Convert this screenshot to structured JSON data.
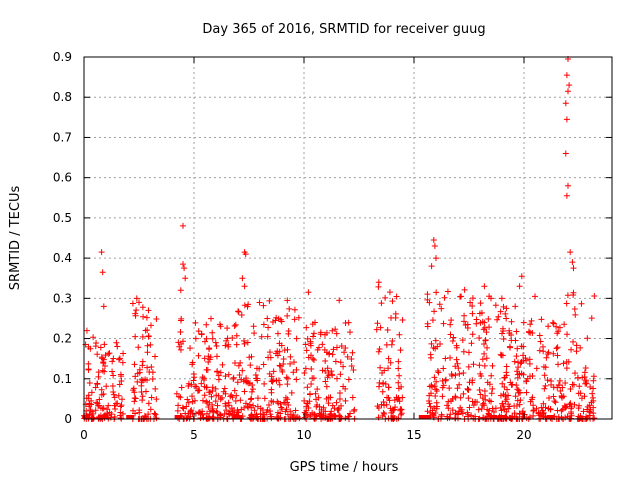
{
  "chart_data": {
    "type": "scatter",
    "title": "Day 365 of 2016, SRMTID for receiver guug",
    "xlabel": "GPS time / hours",
    "ylabel": "SRMTID / TECUs",
    "xlim": [
      0,
      24
    ],
    "ylim": [
      0,
      0.9
    ],
    "xticks": [
      "0",
      "5",
      "10",
      "15",
      "20"
    ],
    "yticks": [
      "0",
      "0.1",
      "0.2",
      "0.3",
      "0.4",
      "0.5",
      "0.6",
      "0.7",
      "0.8",
      "0.9"
    ],
    "grid": true,
    "marker": "+",
    "colors": {
      "points": "#ff0000"
    },
    "clusters": [
      {
        "x_start": 0.0,
        "x_end": 1.8,
        "max": 0.22,
        "spikes": [
          [
            0.8,
            0.415
          ],
          [
            0.85,
            0.365
          ],
          [
            0.9,
            0.28
          ]
        ]
      },
      {
        "x_start": 2.2,
        "x_end": 3.3,
        "max": 0.3,
        "spikes": [
          [
            2.4,
            0.3
          ],
          [
            2.5,
            0.29
          ]
        ]
      },
      {
        "x_start": 4.2,
        "x_end": 7.0,
        "max": 0.25,
        "spikes": [
          [
            4.5,
            0.48
          ],
          [
            4.5,
            0.385
          ],
          [
            4.55,
            0.375
          ],
          [
            4.6,
            0.35
          ],
          [
            4.4,
            0.32
          ],
          [
            8.7,
            0.245
          ]
        ]
      },
      {
        "x_start": 7.0,
        "x_end": 9.8,
        "max": 0.3,
        "spikes": [
          [
            7.3,
            0.415
          ],
          [
            7.35,
            0.41
          ],
          [
            7.2,
            0.35
          ],
          [
            7.3,
            0.33
          ],
          [
            10.2,
            0.315
          ]
        ]
      },
      {
        "x_start": 10.0,
        "x_end": 12.3,
        "max": 0.24,
        "spikes": [
          [
            11.6,
            0.295
          ],
          [
            10.5,
            0.24
          ]
        ]
      },
      {
        "x_start": 13.3,
        "x_end": 14.5,
        "max": 0.33,
        "spikes": [
          [
            13.4,
            0.34
          ]
        ]
      },
      {
        "x_start": 15.6,
        "x_end": 19.2,
        "max": 0.33,
        "spikes": [
          [
            15.9,
            0.445
          ],
          [
            15.95,
            0.43
          ],
          [
            16.0,
            0.4
          ],
          [
            15.8,
            0.38
          ],
          [
            18.2,
            0.33
          ],
          [
            18.5,
            0.3
          ]
        ]
      },
      {
        "x_start": 19.0,
        "x_end": 21.8,
        "max": 0.25,
        "spikes": [
          [
            19.9,
            0.355
          ],
          [
            19.8,
            0.33
          ],
          [
            20.5,
            0.305
          ],
          [
            19.6,
            0.28
          ],
          [
            19.2,
            0.275
          ]
        ]
      },
      {
        "x_start": 21.8,
        "x_end": 23.2,
        "max": 0.32,
        "spikes": [
          [
            22.0,
            0.895
          ],
          [
            21.95,
            0.855
          ],
          [
            22.05,
            0.83
          ],
          [
            22.0,
            0.815
          ],
          [
            21.9,
            0.785
          ],
          [
            21.95,
            0.745
          ],
          [
            21.9,
            0.66
          ],
          [
            22.0,
            0.58
          ],
          [
            21.95,
            0.555
          ],
          [
            22.1,
            0.415
          ],
          [
            22.2,
            0.39
          ],
          [
            22.25,
            0.375
          ]
        ]
      }
    ],
    "floor_markers": [
      0.1,
      0.9,
      2.1,
      4.3,
      7.0,
      15.4,
      15.6,
      18.6,
      19.0,
      21.2
    ]
  }
}
